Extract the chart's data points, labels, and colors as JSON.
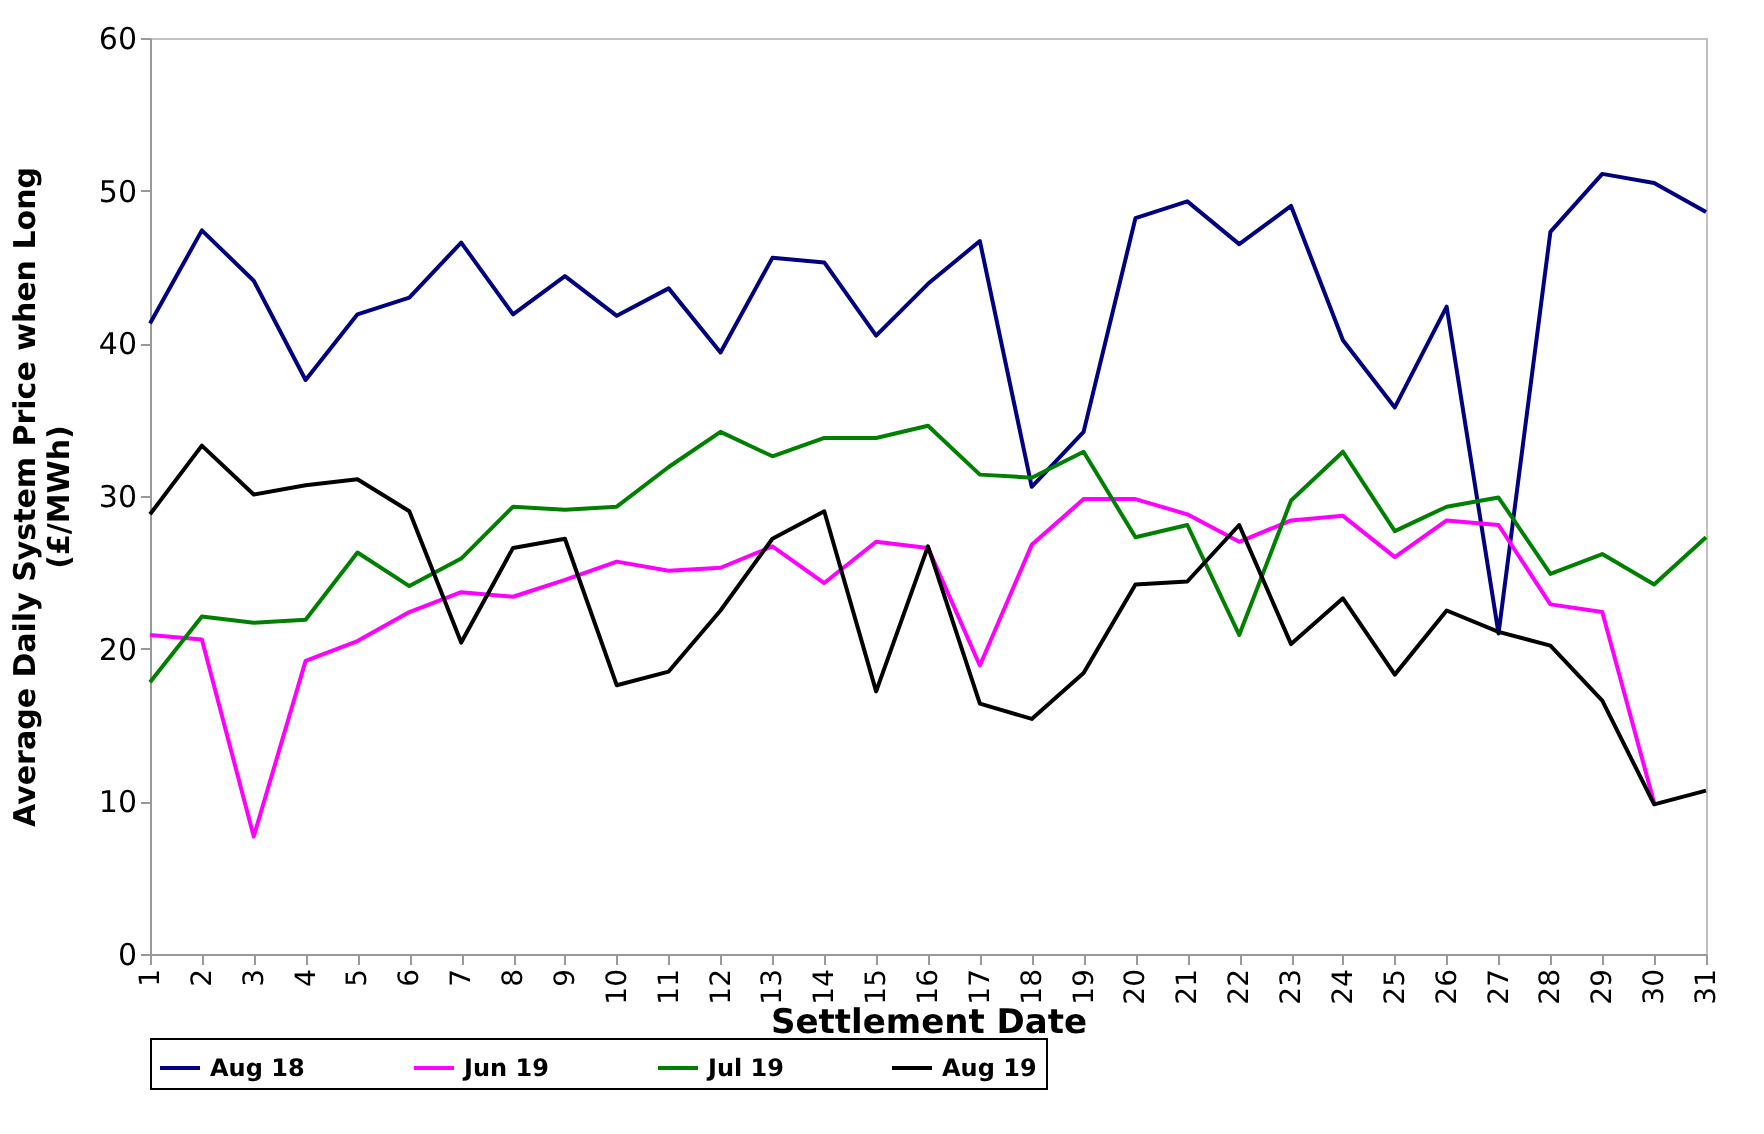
{
  "chart_data": {
    "type": "line",
    "xlabel": "Settlement Date",
    "ylabel": "Average Daily System Price when Long (£/MWh)",
    "categories": [
      "1",
      "2",
      "3",
      "4",
      "5",
      "6",
      "7",
      "8",
      "9",
      "10",
      "11",
      "12",
      "13",
      "14",
      "15",
      "16",
      "17",
      "18",
      "19",
      "20",
      "21",
      "22",
      "23",
      "24",
      "25",
      "26",
      "27",
      "28",
      "29",
      "30",
      "31"
    ],
    "series": [
      {
        "name": "Aug 18",
        "color": "#000080",
        "values": [
          41.3,
          47.4,
          44.1,
          37.6,
          41.9,
          43.0,
          46.6,
          41.9,
          44.4,
          41.8,
          43.6,
          39.4,
          45.6,
          45.3,
          40.5,
          43.9,
          46.7,
          30.6,
          34.2,
          48.2,
          49.3,
          46.5,
          49.0,
          40.2,
          35.8,
          42.4,
          21.0,
          47.3,
          51.1,
          50.5,
          48.6
        ]
      },
      {
        "name": "Jun 19",
        "color": "#ff00ff",
        "values": [
          20.9,
          20.6,
          7.7,
          19.2,
          20.5,
          22.4,
          23.7,
          23.4,
          24.5,
          25.7,
          25.1,
          25.3,
          26.7,
          24.3,
          27.0,
          26.6,
          18.9,
          26.8,
          29.8,
          29.8,
          28.8,
          27.0,
          28.4,
          28.7,
          26.0,
          28.4,
          28.1,
          22.9,
          22.4,
          9.9,
          null
        ]
      },
      {
        "name": "Jul 19",
        "color": "#008000",
        "values": [
          17.8,
          22.1,
          21.7,
          21.9,
          26.3,
          24.1,
          25.9,
          29.3,
          29.1,
          29.3,
          31.9,
          34.2,
          32.6,
          33.8,
          33.8,
          34.6,
          31.4,
          31.2,
          32.9,
          27.3,
          28.1,
          20.9,
          29.7,
          32.9,
          27.7,
          29.3,
          29.9,
          24.9,
          26.2,
          24.2,
          27.3
        ]
      },
      {
        "name": "Aug 19",
        "color": "#000000",
        "values": [
          28.8,
          33.3,
          30.1,
          30.7,
          31.1,
          29.0,
          20.4,
          26.6,
          27.2,
          17.6,
          18.5,
          22.5,
          27.2,
          29.0,
          17.2,
          26.7,
          16.4,
          15.4,
          18.4,
          24.2,
          24.4,
          28.1,
          20.3,
          23.3,
          18.3,
          22.5,
          21.1,
          20.2,
          16.6,
          9.8,
          10.7
        ]
      }
    ],
    "ylim": [
      0,
      60
    ],
    "yticks": [
      0,
      10,
      20,
      30,
      40,
      50,
      60
    ],
    "grid": false,
    "legend": "bottom",
    "marker": "none",
    "line_style": "solid"
  }
}
